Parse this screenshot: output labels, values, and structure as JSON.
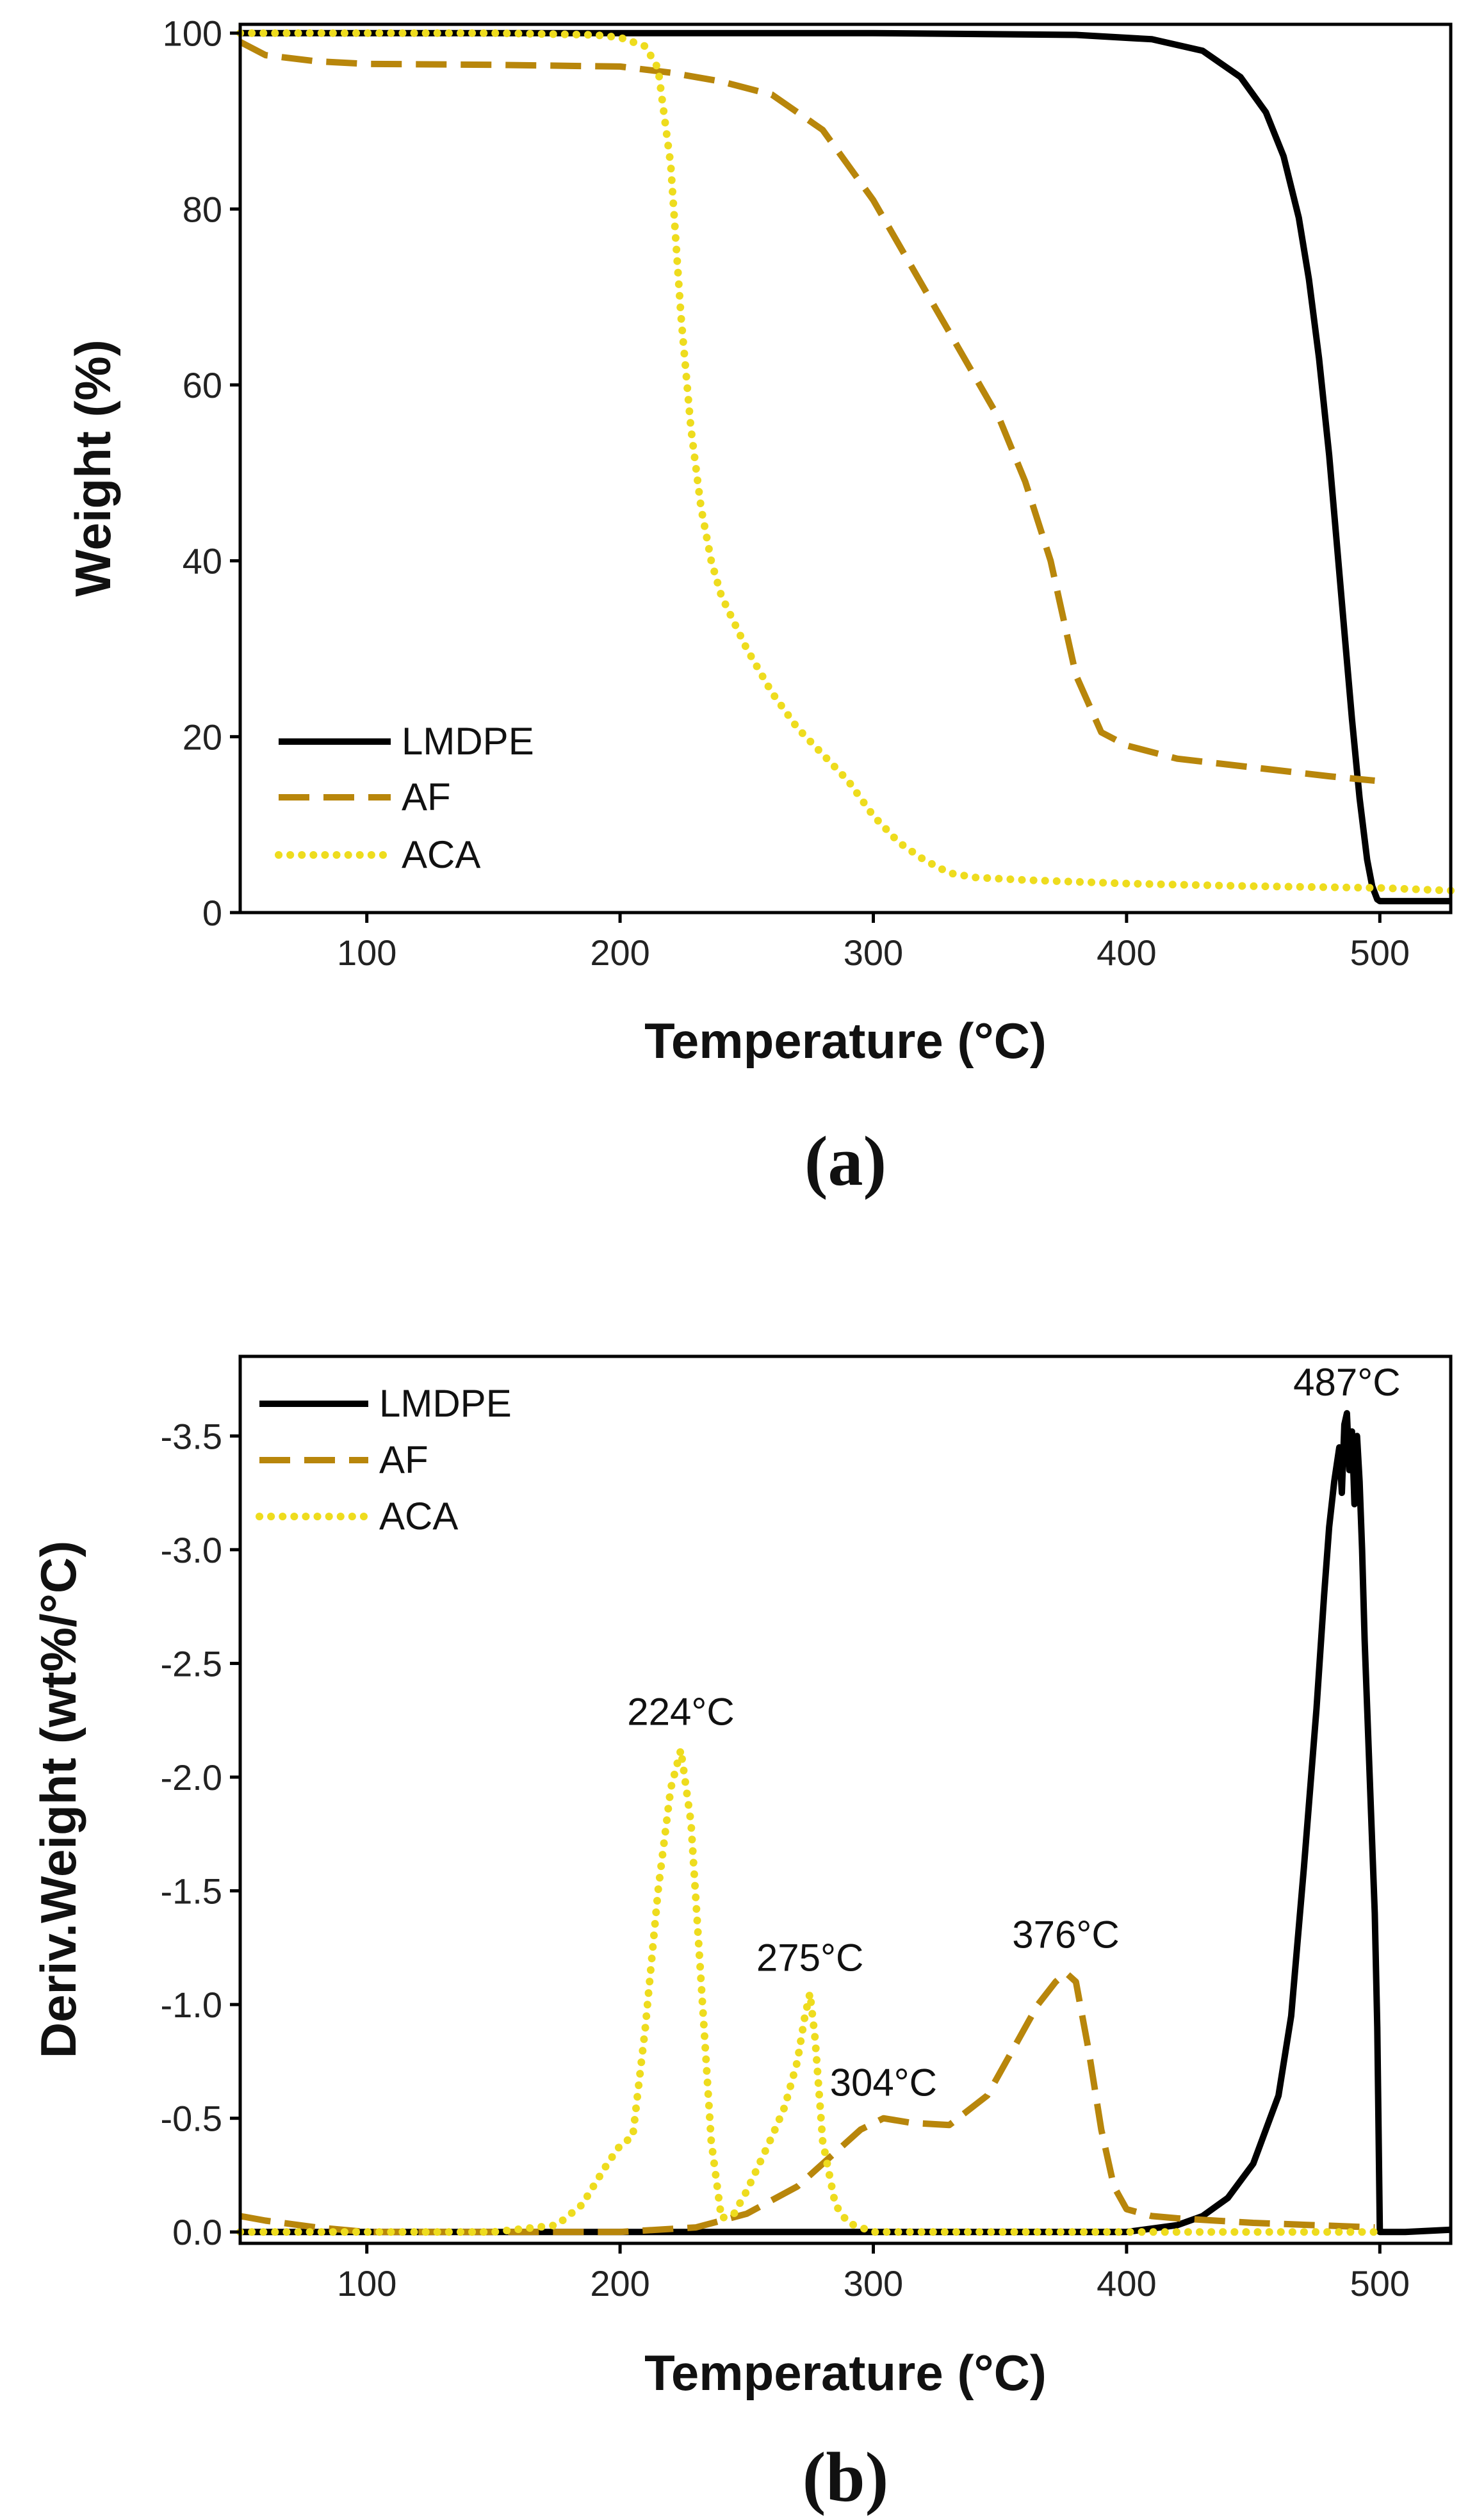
{
  "colors": {
    "LMDPE": "#000000",
    "AF": "#b8860b",
    "ACA": "#eedc1e",
    "axis": "#000000"
  },
  "chart_data": [
    {
      "id": "a",
      "panel_label": "(a)",
      "type": "line",
      "xlabel": "Temperature (°C)",
      "ylabel": "Weight (%)",
      "xlim": [
        50,
        528
      ],
      "ylim": [
        0,
        101
      ],
      "xticks": [
        100,
        200,
        300,
        400,
        500
      ],
      "yticks": [
        0,
        20,
        40,
        60,
        80,
        100
      ],
      "legend": {
        "position": "bottom-left",
        "entries": [
          "LMDPE",
          "AF",
          "ACA"
        ]
      },
      "series": [
        {
          "name": "LMDPE",
          "style": "solid",
          "x": [
            50,
            100,
            200,
            300,
            380,
            410,
            430,
            445,
            455,
            462,
            468,
            472,
            476,
            480,
            483,
            486,
            489,
            492,
            495,
            497,
            499,
            500,
            528
          ],
          "y": [
            100,
            100,
            100,
            100,
            99.8,
            99.3,
            98,
            95,
            91,
            86,
            79,
            72,
            63,
            52,
            42,
            32,
            22,
            13,
            6,
            3,
            1.5,
            1.3,
            1.3
          ]
        },
        {
          "name": "AF",
          "style": "dashed",
          "x": [
            50,
            60,
            80,
            100,
            150,
            200,
            220,
            240,
            260,
            280,
            300,
            320,
            340,
            350,
            360,
            370,
            380,
            390,
            400,
            420,
            450,
            480,
            498
          ],
          "y": [
            99,
            97.5,
            96.8,
            96.5,
            96.4,
            96.2,
            95.5,
            94.5,
            93,
            89,
            81,
            71,
            61,
            56,
            49,
            40,
            27,
            20.5,
            19,
            17.5,
            16.5,
            15.5,
            15
          ]
        },
        {
          "name": "ACA",
          "style": "dotted",
          "x": [
            50,
            100,
            150,
            190,
            200,
            210,
            215,
            220,
            224,
            228,
            232,
            236,
            240,
            250,
            260,
            270,
            280,
            290,
            300,
            310,
            320,
            330,
            340,
            360,
            400,
            450,
            500,
            528
          ],
          "y": [
            100,
            100,
            100,
            99.8,
            99.5,
            98.5,
            96,
            85,
            68,
            55,
            46,
            40,
            36,
            30,
            25,
            21,
            18,
            15,
            11,
            8,
            6,
            4.5,
            4,
            3.7,
            3.3,
            3,
            2.8,
            2.5
          ]
        }
      ]
    },
    {
      "id": "b",
      "panel_label": "(b)",
      "type": "line",
      "xlabel": "Temperature (°C)",
      "ylabel": "Deriv.Weight (wt%/°C)",
      "xlim": [
        50,
        528
      ],
      "ylim": [
        0.05,
        -3.85
      ],
      "y_inverted": true,
      "xticks": [
        100,
        200,
        300,
        400,
        500
      ],
      "yticks": [
        0.0,
        -0.5,
        -1.0,
        -1.5,
        -2.0,
        -2.5,
        -3.0,
        -3.5
      ],
      "ytick_labels": [
        "0.0",
        "-0.5",
        "-1.0",
        "-1.5",
        "-2.0",
        "-2.5",
        "-3.0",
        "-3.5"
      ],
      "legend": {
        "position": "top-left",
        "entries": [
          "LMDPE",
          "AF",
          "ACA"
        ]
      },
      "annotations": [
        {
          "text": "224°C",
          "x": 224,
          "y": -2.15
        },
        {
          "text": "275°C",
          "x": 275,
          "y": -1.07
        },
        {
          "text": "304°C",
          "x": 304,
          "y": -0.52
        },
        {
          "text": "376°C",
          "x": 376,
          "y": -1.17
        },
        {
          "text": "487°C",
          "x": 487,
          "y": -3.6
        }
      ],
      "series": [
        {
          "name": "LMDPE",
          "style": "solid",
          "x": [
            50,
            200,
            300,
            400,
            420,
            430,
            440,
            450,
            460,
            465,
            470,
            475,
            478,
            480,
            482,
            484,
            485,
            486,
            487,
            488,
            489,
            490,
            491,
            492,
            493,
            494,
            496,
            498,
            499,
            500,
            510,
            528
          ],
          "y": [
            0,
            0,
            0,
            0,
            -0.03,
            -0.07,
            -0.15,
            -0.3,
            -0.6,
            -0.95,
            -1.6,
            -2.3,
            -2.8,
            -3.1,
            -3.3,
            -3.45,
            -3.25,
            -3.55,
            -3.6,
            -3.35,
            -3.52,
            -3.2,
            -3.5,
            -3.3,
            -3.0,
            -2.6,
            -2.0,
            -1.4,
            -0.9,
            0,
            0,
            -0.01
          ]
        },
        {
          "name": "AF",
          "style": "dashed",
          "x": [
            50,
            60,
            80,
            100,
            150,
            200,
            230,
            250,
            270,
            285,
            295,
            304,
            315,
            330,
            345,
            355,
            365,
            372,
            376,
            380,
            385,
            390,
            395,
            400,
            410,
            420,
            450,
            498
          ],
          "y": [
            -0.07,
            -0.05,
            -0.02,
            0,
            0,
            0,
            -0.02,
            -0.08,
            -0.2,
            -0.35,
            -0.45,
            -0.5,
            -0.48,
            -0.47,
            -0.6,
            -0.8,
            -1.0,
            -1.1,
            -1.14,
            -1.1,
            -0.8,
            -0.45,
            -0.2,
            -0.1,
            -0.07,
            -0.06,
            -0.04,
            -0.02
          ]
        },
        {
          "name": "ACA",
          "style": "dotted",
          "x": [
            50,
            100,
            150,
            175,
            185,
            195,
            200,
            205,
            210,
            215,
            220,
            224,
            228,
            232,
            236,
            240,
            245,
            250,
            255,
            260,
            265,
            270,
            273,
            275,
            277,
            280,
            285,
            290,
            300,
            350,
            400,
            450,
            500
          ],
          "y": [
            0,
            0,
            0,
            -0.03,
            -0.12,
            -0.3,
            -0.38,
            -0.42,
            -0.9,
            -1.5,
            -1.95,
            -2.12,
            -1.8,
            -1.1,
            -0.4,
            -0.06,
            -0.08,
            -0.18,
            -0.3,
            -0.42,
            -0.55,
            -0.75,
            -0.95,
            -1.05,
            -0.85,
            -0.4,
            -0.12,
            -0.04,
            0,
            0,
            0,
            0,
            0
          ]
        }
      ]
    }
  ]
}
